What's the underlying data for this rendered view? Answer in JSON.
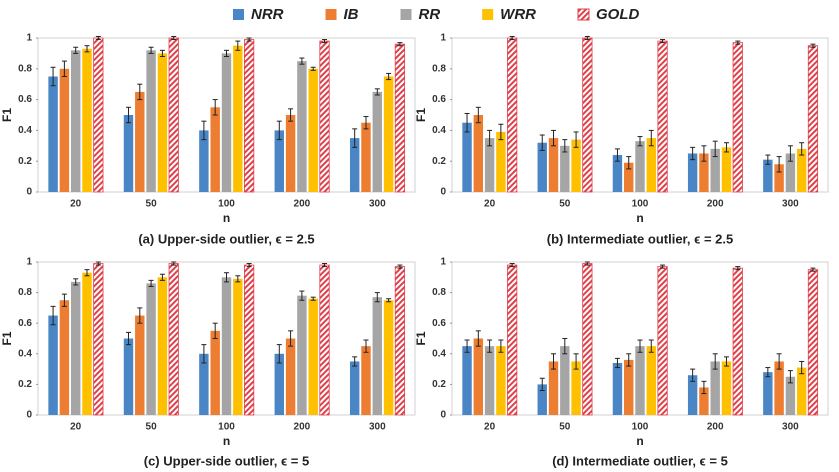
{
  "chart_data": [
    {
      "type": "bar",
      "title": "(a) Upper-side outlier,  ϵ = 2.5",
      "xlabel": "n",
      "ylabel": "F1",
      "categories": [
        "20",
        "50",
        "100",
        "200",
        "300"
      ],
      "ylim": [
        0,
        1
      ],
      "yticks": [
        0,
        0.2,
        0.4,
        0.6,
        0.8,
        1
      ],
      "series": [
        {
          "name": "NRR",
          "color": "#4a86c6",
          "values": [
            0.75,
            0.5,
            0.4,
            0.4,
            0.35
          ],
          "errors": [
            0.06,
            0.05,
            0.06,
            0.06,
            0.06
          ]
        },
        {
          "name": "IB",
          "color": "#ed7d31",
          "values": [
            0.8,
            0.65,
            0.55,
            0.5,
            0.45
          ],
          "errors": [
            0.05,
            0.05,
            0.05,
            0.04,
            0.04
          ]
        },
        {
          "name": "RR",
          "color": "#a5a5a5",
          "values": [
            0.92,
            0.92,
            0.9,
            0.85,
            0.65
          ],
          "errors": [
            0.02,
            0.02,
            0.02,
            0.02,
            0.02
          ]
        },
        {
          "name": "WRR",
          "color": "#ffc000",
          "values": [
            0.93,
            0.9,
            0.95,
            0.8,
            0.75
          ],
          "errors": [
            0.02,
            0.02,
            0.03,
            0.01,
            0.02
          ]
        },
        {
          "name": "GOLD",
          "color": "#e0404a",
          "pattern": "hatch",
          "values": [
            1.0,
            1.0,
            0.99,
            0.98,
            0.96
          ],
          "errors": [
            0.01,
            0.01,
            0.01,
            0.01,
            0.01
          ]
        }
      ]
    },
    {
      "type": "bar",
      "title": "(b) Intermediate outlier,  ϵ = 2.5",
      "xlabel": "n",
      "ylabel": "F1",
      "categories": [
        "20",
        "50",
        "100",
        "200",
        "300"
      ],
      "ylim": [
        0,
        1
      ],
      "yticks": [
        0,
        0.2,
        0.4,
        0.6,
        0.8,
        1
      ],
      "series": [
        {
          "name": "NRR",
          "color": "#4a86c6",
          "values": [
            0.45,
            0.32,
            0.24,
            0.25,
            0.21
          ],
          "errors": [
            0.06,
            0.05,
            0.04,
            0.04,
            0.03
          ]
        },
        {
          "name": "IB",
          "color": "#ed7d31",
          "values": [
            0.5,
            0.35,
            0.19,
            0.25,
            0.18
          ],
          "errors": [
            0.05,
            0.05,
            0.04,
            0.05,
            0.05
          ]
        },
        {
          "name": "RR",
          "color": "#a5a5a5",
          "values": [
            0.35,
            0.3,
            0.33,
            0.28,
            0.25
          ],
          "errors": [
            0.05,
            0.04,
            0.03,
            0.05,
            0.05
          ]
        },
        {
          "name": "WRR",
          "color": "#ffc000",
          "values": [
            0.39,
            0.34,
            0.35,
            0.29,
            0.28
          ],
          "errors": [
            0.05,
            0.05,
            0.05,
            0.03,
            0.04
          ]
        },
        {
          "name": "GOLD",
          "color": "#e0404a",
          "pattern": "hatch",
          "values": [
            1.0,
            1.0,
            0.98,
            0.97,
            0.95
          ],
          "errors": [
            0.01,
            0.01,
            0.01,
            0.01,
            0.01
          ]
        }
      ]
    },
    {
      "type": "bar",
      "title": "(c) Upper-side outlier,  ϵ = 5",
      "xlabel": "n",
      "ylabel": "F1",
      "categories": [
        "20",
        "50",
        "100",
        "200",
        "300"
      ],
      "ylim": [
        0,
        1
      ],
      "yticks": [
        0,
        0.2,
        0.4,
        0.6,
        0.8,
        1
      ],
      "series": [
        {
          "name": "NRR",
          "color": "#4a86c6",
          "values": [
            0.65,
            0.5,
            0.4,
            0.4,
            0.35
          ],
          "errors": [
            0.06,
            0.04,
            0.06,
            0.06,
            0.03
          ]
        },
        {
          "name": "IB",
          "color": "#ed7d31",
          "values": [
            0.75,
            0.65,
            0.55,
            0.5,
            0.45
          ],
          "errors": [
            0.04,
            0.05,
            0.05,
            0.05,
            0.04
          ]
        },
        {
          "name": "RR",
          "color": "#a5a5a5",
          "values": [
            0.87,
            0.86,
            0.9,
            0.78,
            0.77
          ],
          "errors": [
            0.02,
            0.02,
            0.03,
            0.03,
            0.03
          ]
        },
        {
          "name": "WRR",
          "color": "#ffc000",
          "values": [
            0.93,
            0.9,
            0.89,
            0.76,
            0.75
          ],
          "errors": [
            0.02,
            0.02,
            0.02,
            0.01,
            0.01
          ]
        },
        {
          "name": "GOLD",
          "color": "#e0404a",
          "pattern": "hatch",
          "values": [
            0.99,
            0.99,
            0.98,
            0.98,
            0.97
          ],
          "errors": [
            0.01,
            0.01,
            0.01,
            0.01,
            0.01
          ]
        }
      ]
    },
    {
      "type": "bar",
      "title": "(d) Intermediate outlier,  ϵ = 5",
      "xlabel": "n",
      "ylabel": "F1",
      "categories": [
        "20",
        "50",
        "100",
        "200",
        "300"
      ],
      "ylim": [
        0,
        1
      ],
      "yticks": [
        0,
        0.2,
        0.4,
        0.6,
        0.8,
        1
      ],
      "series": [
        {
          "name": "NRR",
          "color": "#4a86c6",
          "values": [
            0.45,
            0.2,
            0.34,
            0.26,
            0.28
          ],
          "errors": [
            0.04,
            0.04,
            0.03,
            0.04,
            0.03
          ]
        },
        {
          "name": "IB",
          "color": "#ed7d31",
          "values": [
            0.5,
            0.35,
            0.36,
            0.18,
            0.35
          ],
          "errors": [
            0.05,
            0.05,
            0.04,
            0.04,
            0.05
          ]
        },
        {
          "name": "RR",
          "color": "#a5a5a5",
          "values": [
            0.45,
            0.45,
            0.45,
            0.35,
            0.25
          ],
          "errors": [
            0.04,
            0.05,
            0.04,
            0.05,
            0.04
          ]
        },
        {
          "name": "WRR",
          "color": "#ffc000",
          "values": [
            0.45,
            0.35,
            0.45,
            0.35,
            0.31
          ],
          "errors": [
            0.04,
            0.05,
            0.04,
            0.03,
            0.04
          ]
        },
        {
          "name": "GOLD",
          "color": "#e0404a",
          "pattern": "hatch",
          "values": [
            0.98,
            0.99,
            0.97,
            0.96,
            0.95
          ],
          "errors": [
            0.01,
            0.01,
            0.01,
            0.01,
            0.01
          ]
        }
      ]
    }
  ]
}
